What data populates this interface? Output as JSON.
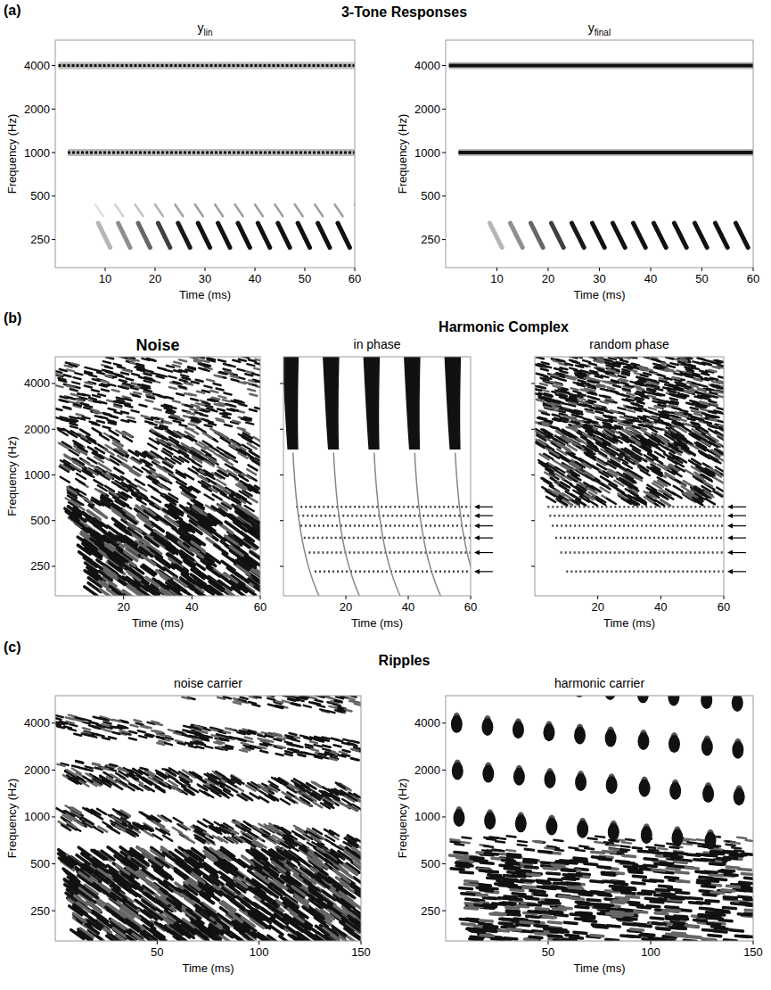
{
  "figure": {
    "groups": [
      {
        "letter": "(a)",
        "headings": [
          "3-Tone Responses"
        ]
      },
      {
        "letter": "(b)",
        "headings": [
          "Noise",
          "Harmonic Complex"
        ]
      },
      {
        "letter": "(c)",
        "headings": [
          "Ripples"
        ]
      }
    ]
  },
  "chart_data": [
    {
      "type": "tones",
      "title": "y",
      "title_subscript": "lin",
      "x_label": "Time (ms)",
      "y_label": "Frequency (Hz)",
      "xlim": [
        0,
        60
      ],
      "xticks": [
        10,
        20,
        30,
        40,
        50,
        60
      ],
      "ylim": [
        160,
        6000
      ],
      "yticks": [
        250,
        500,
        1000,
        2000,
        4000
      ],
      "log": "y",
      "line_style": "dotted",
      "tones": [
        250,
        1000,
        4000
      ]
    },
    {
      "type": "tones",
      "title": "y",
      "title_subscript": "final",
      "x_label": "Time (ms)",
      "y_label": "Frequency (Hz)",
      "xlim": [
        0,
        60
      ],
      "xticks": [
        10,
        20,
        30,
        40,
        50,
        60
      ],
      "ylim": [
        160,
        6000
      ],
      "yticks": [
        250,
        500,
        1000,
        2000,
        4000
      ],
      "log": "y",
      "line_style": "solid",
      "tones": [
        250,
        1000,
        4000
      ]
    },
    {
      "type": "noise",
      "x_label": "Time (ms)",
      "y_label": "Frequency (Hz)",
      "xlim": [
        0,
        60
      ],
      "xticks": [
        20,
        40,
        60
      ],
      "ylim": [
        160,
        6000
      ],
      "yticks": [
        250,
        500,
        1000,
        2000,
        4000
      ],
      "log": "y"
    },
    {
      "type": "harmonic",
      "title": "in phase",
      "x_label": "Time (ms)",
      "xlim": [
        0,
        60
      ],
      "xticks": [
        20,
        40,
        60
      ],
      "ylim": [
        160,
        6000
      ],
      "yticks": [
        250,
        500,
        1000,
        2000,
        4000
      ],
      "log": "y",
      "tick_labels": "x",
      "pulse_times": [
        2,
        15,
        28,
        41,
        54
      ],
      "harmonics": [
        231,
        308,
        385,
        462,
        539,
        616
      ]
    },
    {
      "type": "harmonic",
      "title": "random phase",
      "x_label": "Time (ms)",
      "xlim": [
        0,
        60
      ],
      "xticks": [
        20,
        40,
        60
      ],
      "ylim": [
        160,
        6000
      ],
      "yticks": [
        250,
        500,
        1000,
        2000,
        4000
      ],
      "log": "y",
      "tick_labels": "x",
      "harmonics": [
        231,
        308,
        385,
        462,
        539,
        616
      ]
    },
    {
      "type": "ripple",
      "title": "noise carrier",
      "x_label": "Time (ms)",
      "y_label": "Frequency (Hz)",
      "xlim": [
        0,
        150
      ],
      "xticks": [
        50,
        100,
        150
      ],
      "ylim": [
        160,
        6000
      ],
      "yticks": [
        250,
        500,
        1000,
        2000,
        4000
      ],
      "log": "y",
      "ripple_density": 1,
      "ripple_rate": 4
    },
    {
      "type": "ripple",
      "title": "harmonic carrier",
      "x_label": "Time (ms)",
      "y_label": "Frequency (Hz)",
      "xlim": [
        0,
        150
      ],
      "xticks": [
        50,
        100,
        150
      ],
      "ylim": [
        160,
        6000
      ],
      "yticks": [
        250,
        500,
        1000,
        2000,
        4000
      ],
      "log": "y",
      "ripple_density": 1,
      "ripple_rate": 4,
      "pulse_times": [
        5,
        20,
        35,
        50,
        65,
        80,
        96,
        111,
        127,
        142
      ]
    }
  ]
}
